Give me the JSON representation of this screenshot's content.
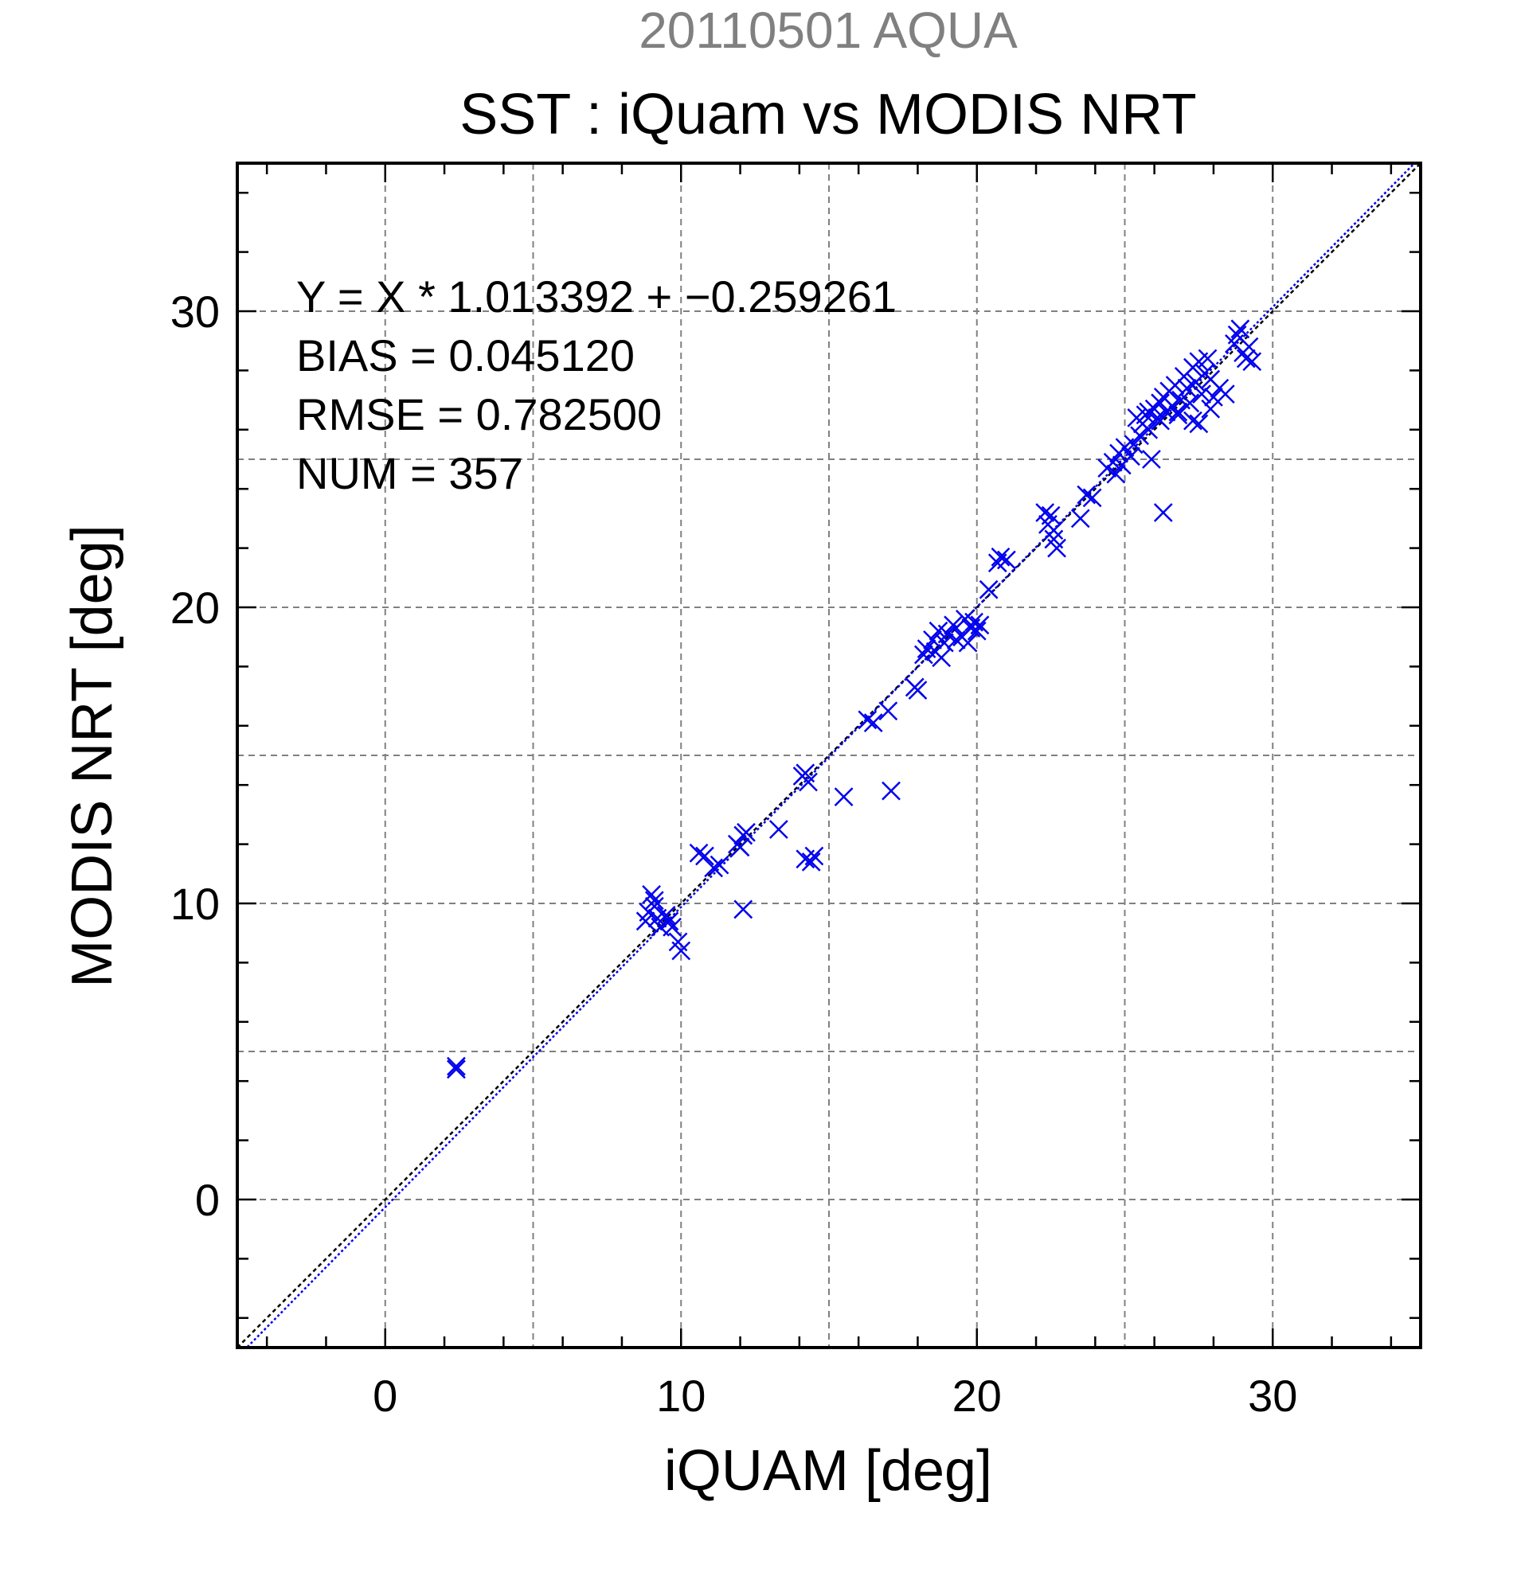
{
  "chart_data": {
    "type": "scatter",
    "supertitle": "20110501 AQUA",
    "title": "SST : iQuam vs MODIS NRT",
    "xlabel": "iQUAM [deg]",
    "ylabel": "MODIS NRT [deg]",
    "xlim": [
      -5,
      35
    ],
    "ylim": [
      -5,
      35
    ],
    "xticks": [
      "0",
      "10",
      "20",
      "30"
    ],
    "yticks": [
      "0",
      "10",
      "20",
      "30"
    ],
    "grid": true,
    "colors": {
      "points": "#0000ee",
      "fit_line": "#0000ee",
      "one_to_one": "#000000",
      "supertitle": "#808080",
      "grid": "#808080"
    },
    "stats": {
      "equation": "Y = X * 1.013392 + −0.259261",
      "bias": "BIAS = 0.045120",
      "rmse": "RMSE = 0.782500",
      "num": "NUM = 357"
    },
    "fit": {
      "slope": 1.013392,
      "intercept": -0.259261
    },
    "points": [
      [
        2.4,
        4.4
      ],
      [
        2.4,
        4.5
      ],
      [
        8.8,
        9.4
      ],
      [
        8.9,
        9.7
      ],
      [
        9.0,
        10.3
      ],
      [
        9.1,
        9.9
      ],
      [
        9.2,
        9.5
      ],
      [
        9.3,
        9.2
      ],
      [
        9.5,
        9.6
      ],
      [
        9.6,
        9.4
      ],
      [
        9.7,
        9.2
      ],
      [
        9.9,
        8.7
      ],
      [
        10.0,
        8.4
      ],
      [
        9.1,
        10.1
      ],
      [
        10.6,
        11.7
      ],
      [
        10.8,
        11.6
      ],
      [
        11.1,
        11.2
      ],
      [
        11.3,
        11.3
      ],
      [
        11.9,
        12.0
      ],
      [
        12.0,
        11.9
      ],
      [
        12.1,
        12.3
      ],
      [
        12.2,
        12.4
      ],
      [
        12.1,
        9.8
      ],
      [
        13.3,
        12.5
      ],
      [
        14.1,
        14.3
      ],
      [
        14.3,
        14.1
      ],
      [
        14.2,
        14.4
      ],
      [
        14.2,
        11.5
      ],
      [
        14.4,
        11.4
      ],
      [
        14.5,
        11.6
      ],
      [
        15.5,
        13.6
      ],
      [
        16.3,
        16.2
      ],
      [
        16.5,
        16.1
      ],
      [
        17.0,
        16.5
      ],
      [
        17.1,
        13.8
      ],
      [
        17.9,
        17.3
      ],
      [
        18.0,
        17.2
      ],
      [
        18.2,
        18.4
      ],
      [
        18.3,
        18.6
      ],
      [
        18.5,
        18.9
      ],
      [
        18.6,
        18.5
      ],
      [
        18.7,
        19.2
      ],
      [
        18.8,
        18.3
      ],
      [
        18.9,
        18.8
      ],
      [
        19.0,
        19.1
      ],
      [
        19.2,
        19.4
      ],
      [
        19.3,
        18.9
      ],
      [
        19.5,
        19.0
      ],
      [
        19.6,
        19.6
      ],
      [
        19.7,
        18.8
      ],
      [
        19.8,
        19.3
      ],
      [
        19.9,
        19.5
      ],
      [
        20.0,
        19.2
      ],
      [
        20.1,
        19.4
      ],
      [
        20.4,
        20.6
      ],
      [
        20.7,
        21.5
      ],
      [
        20.8,
        21.7
      ],
      [
        21.0,
        21.6
      ],
      [
        22.3,
        23.2
      ],
      [
        22.4,
        22.8
      ],
      [
        22.5,
        23.1
      ],
      [
        22.6,
        22.3
      ],
      [
        22.7,
        22.0
      ],
      [
        22.6,
        22.6
      ],
      [
        23.5,
        23.0
      ],
      [
        23.7,
        23.8
      ],
      [
        23.9,
        23.7
      ],
      [
        24.4,
        24.7
      ],
      [
        24.6,
        24.9
      ],
      [
        24.7,
        24.5
      ],
      [
        24.8,
        25.2
      ],
      [
        24.9,
        24.8
      ],
      [
        25.0,
        25.4
      ],
      [
        25.2,
        25.1
      ],
      [
        25.3,
        25.5
      ],
      [
        25.5,
        25.8
      ],
      [
        25.6,
        26.2
      ],
      [
        25.7,
        26.5
      ],
      [
        25.8,
        26.0
      ],
      [
        25.9,
        25.0
      ],
      [
        26.0,
        26.7
      ],
      [
        26.1,
        26.4
      ],
      [
        26.2,
        26.9
      ],
      [
        26.3,
        27.1
      ],
      [
        26.4,
        26.6
      ],
      [
        26.5,
        27.3
      ],
      [
        26.6,
        26.8
      ],
      [
        26.7,
        27.5
      ],
      [
        26.8,
        26.5
      ],
      [
        26.9,
        27.0
      ],
      [
        27.0,
        27.8
      ],
      [
        27.1,
        27.4
      ],
      [
        27.2,
        26.9
      ],
      [
        27.3,
        28.1
      ],
      [
        27.4,
        27.6
      ],
      [
        27.5,
        28.3
      ],
      [
        27.6,
        27.2
      ],
      [
        27.7,
        27.9
      ],
      [
        27.8,
        28.4
      ],
      [
        27.9,
        27.7
      ],
      [
        28.0,
        27.1
      ],
      [
        28.2,
        27.4
      ],
      [
        28.4,
        27.2
      ],
      [
        26.3,
        23.2
      ],
      [
        26.8,
        26.6
      ],
      [
        27.3,
        26.3
      ],
      [
        27.5,
        26.2
      ],
      [
        27.9,
        26.7
      ],
      [
        28.8,
        29.2
      ],
      [
        28.9,
        29.4
      ],
      [
        29.0,
        28.6
      ],
      [
        29.1,
        28.4
      ],
      [
        29.2,
        28.8
      ],
      [
        29.3,
        28.3
      ],
      [
        28.7,
        28.9
      ],
      [
        26.2,
        26.3
      ],
      [
        25.4,
        26.4
      ],
      [
        25.8,
        26.6
      ]
    ]
  }
}
